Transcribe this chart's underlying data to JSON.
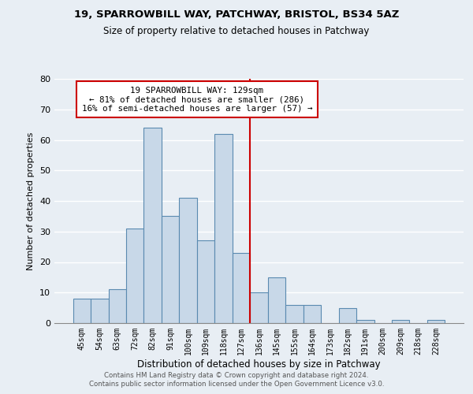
{
  "title1": "19, SPARROWBILL WAY, PATCHWAY, BRISTOL, BS34 5AZ",
  "title2": "Size of property relative to detached houses in Patchway",
  "xlabel": "Distribution of detached houses by size in Patchway",
  "ylabel": "Number of detached properties",
  "bar_labels": [
    "45sqm",
    "54sqm",
    "63sqm",
    "72sqm",
    "82sqm",
    "91sqm",
    "100sqm",
    "109sqm",
    "118sqm",
    "127sqm",
    "136sqm",
    "145sqm",
    "155sqm",
    "164sqm",
    "173sqm",
    "182sqm",
    "191sqm",
    "200sqm",
    "209sqm",
    "218sqm",
    "228sqm"
  ],
  "bar_values": [
    8,
    8,
    11,
    31,
    64,
    35,
    41,
    27,
    62,
    23,
    10,
    15,
    6,
    6,
    0,
    5,
    1,
    0,
    1,
    0,
    1
  ],
  "bar_color": "#c8d8e8",
  "bar_edge_color": "#5a8ab0",
  "vline_x": 9.5,
  "vline_color": "#cc0000",
  "annotation_text": "19 SPARROWBILL WAY: 129sqm\n← 81% of detached houses are smaller (286)\n16% of semi-detached houses are larger (57) →",
  "annotation_box_color": "#ffffff",
  "annotation_box_edge": "#cc0000",
  "ylim": [
    0,
    80
  ],
  "yticks": [
    0,
    10,
    20,
    30,
    40,
    50,
    60,
    70,
    80
  ],
  "footer1": "Contains HM Land Registry data © Crown copyright and database right 2024.",
  "footer2": "Contains public sector information licensed under the Open Government Licence v3.0.",
  "bg_color": "#e8eef4"
}
